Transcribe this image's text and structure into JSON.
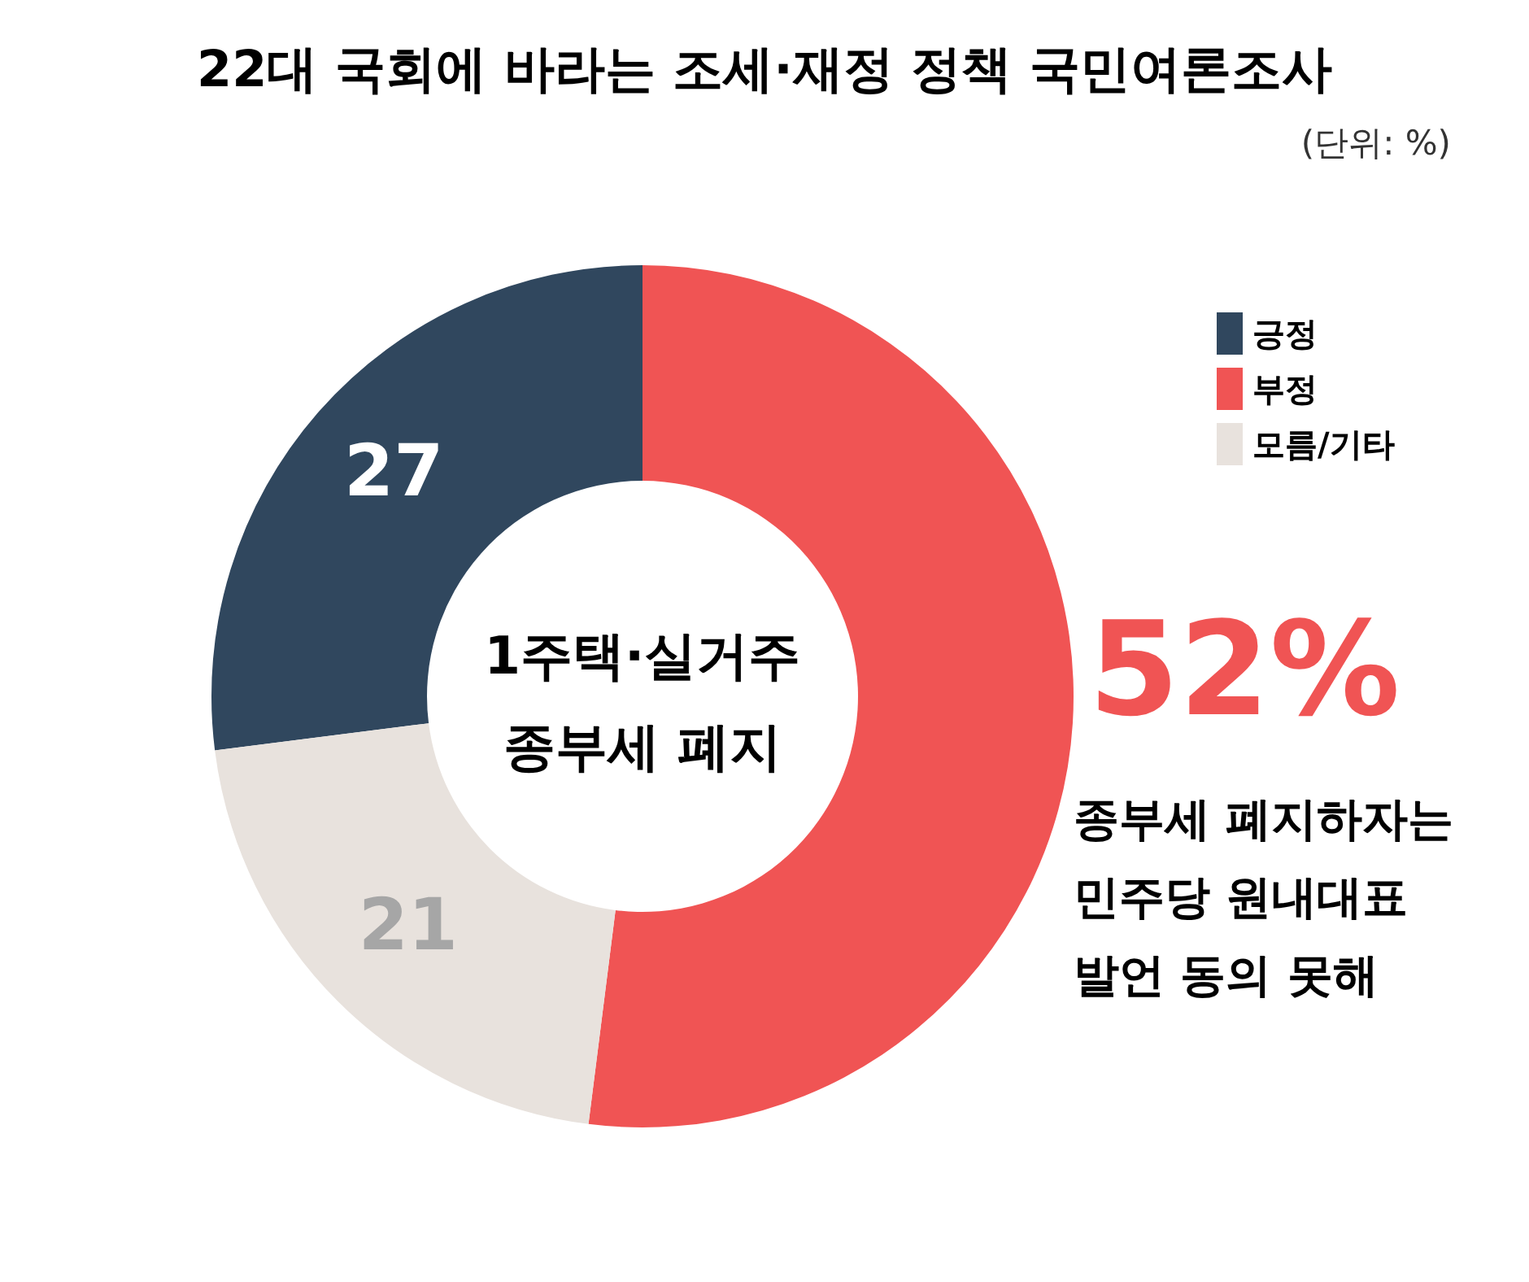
{
  "chart_data": {
    "type": "donut",
    "title": "22대 국회에 바라는 조세·재정 정책 국민여론조사",
    "subtitle": "(단위: %)",
    "categories": [
      "긍정",
      "부정",
      "모름/기타"
    ],
    "values": [
      27,
      52,
      21
    ],
    "colors": [
      "#30475e",
      "#f05454",
      "#e8e2dd"
    ],
    "value_labels": [
      "27",
      "52%",
      "21"
    ],
    "legend": "top right",
    "annotations": [
      "1주택·실거주 종부세 폐지",
      "종부세 폐지하자는 민주당 원내대표 발언 동의 못해"
    ]
  }
}
